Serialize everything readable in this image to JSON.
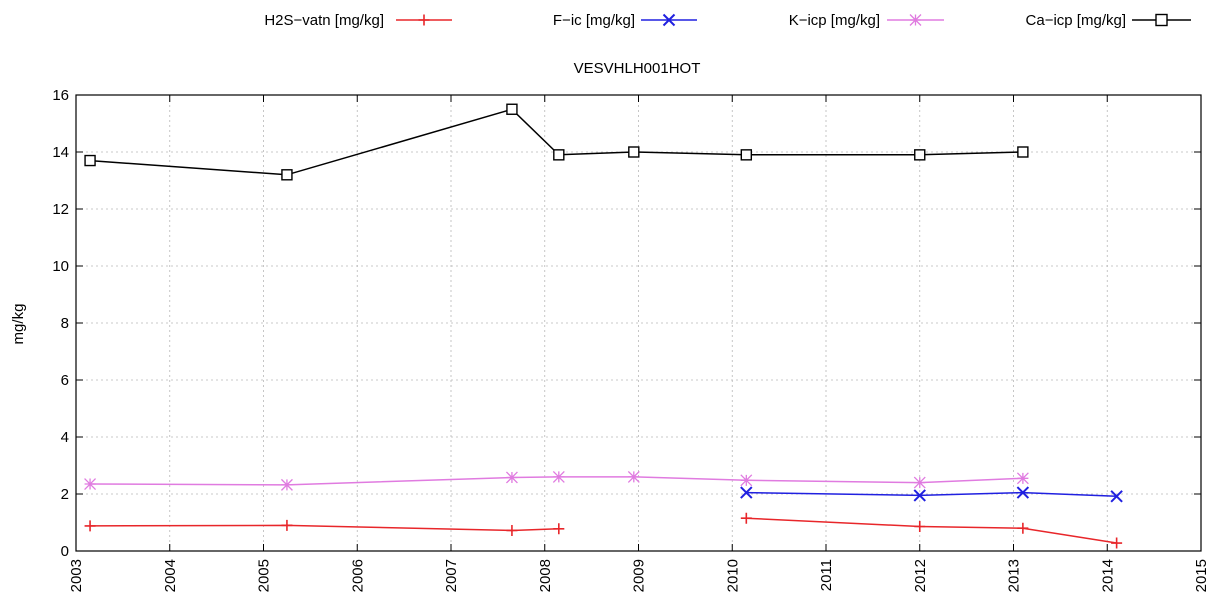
{
  "chart_data": {
    "type": "line",
    "title": "VESVHLH001HOT",
    "xlabel": "",
    "ylabel": "mg/kg",
    "xlim": [
      2003,
      2015
    ],
    "ylim": [
      0,
      16
    ],
    "x_ticks": [
      "2003",
      "2004",
      "2005",
      "2006",
      "2007",
      "2008",
      "2009",
      "2010",
      "2011",
      "2012",
      "2013",
      "2014",
      "2015"
    ],
    "y_ticks": [
      "0",
      "2",
      "4",
      "6",
      "8",
      "10",
      "12",
      "14",
      "16"
    ],
    "grid": true,
    "legend_position": "top",
    "series": [
      {
        "name": "H2S−vatn [mg/kg]",
        "color": "#e8262a",
        "marker": "plus",
        "segments": [
          [
            [
              2003.15,
              0.88
            ],
            [
              2005.25,
              0.9
            ],
            [
              2007.65,
              0.72
            ],
            [
              2008.15,
              0.78
            ]
          ],
          [
            [
              2010.15,
              1.15
            ],
            [
              2012.0,
              0.86
            ],
            [
              2013.1,
              0.8
            ],
            [
              2014.1,
              0.28
            ]
          ]
        ]
      },
      {
        "name": "F−ic [mg/kg]",
        "color": "#2020e0",
        "marker": "cross",
        "segments": [
          [
            [
              2010.15,
              2.05
            ],
            [
              2012.0,
              1.95
            ],
            [
              2013.1,
              2.05
            ],
            [
              2014.1,
              1.92
            ]
          ]
        ]
      },
      {
        "name": "K−icp [mg/kg]",
        "color": "#e07be0",
        "marker": "star",
        "segments": [
          [
            [
              2003.15,
              2.35
            ],
            [
              2005.25,
              2.32
            ],
            [
              2007.65,
              2.58
            ],
            [
              2008.15,
              2.6
            ],
            [
              2008.95,
              2.6
            ],
            [
              2010.15,
              2.48
            ],
            [
              2012.0,
              2.4
            ],
            [
              2013.1,
              2.55
            ]
          ]
        ]
      },
      {
        "name": "Ca−icp [mg/kg]",
        "color": "#000000",
        "marker": "square",
        "segments": [
          [
            [
              2003.15,
              13.7
            ],
            [
              2005.25,
              13.2
            ],
            [
              2007.65,
              15.5
            ],
            [
              2008.15,
              13.9
            ],
            [
              2008.95,
              14.0
            ],
            [
              2010.15,
              13.9
            ],
            [
              2012.0,
              13.9
            ],
            [
              2013.1,
              14.0
            ]
          ]
        ]
      }
    ]
  }
}
